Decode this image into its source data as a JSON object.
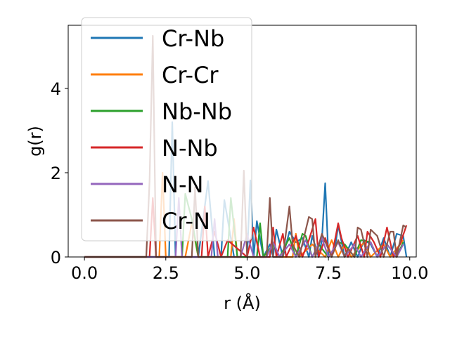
{
  "chart_data": {
    "type": "line",
    "xlabel": "r (Å)",
    "ylabel": "g(r)",
    "xlim": [
      -0.5,
      10.2
    ],
    "ylim": [
      0,
      5.5
    ],
    "xticks": [
      0.0,
      2.5,
      5.0,
      7.5,
      10.0
    ],
    "xtick_labels": [
      "0.0",
      "2.5",
      "5.0",
      "7.5",
      "10.0"
    ],
    "yticks": [
      0,
      2,
      4
    ],
    "ytick_labels": [
      "0",
      "2",
      "4"
    ],
    "grid": false,
    "legend_position": "upper-left",
    "series": [
      {
        "name": "Cr-Nb",
        "color": "#1f77b4",
        "x": [
          0,
          2.6,
          2.7,
          2.8,
          3.5,
          3.8,
          4.0,
          4.2,
          4.3,
          4.6,
          5.0,
          5.1,
          5.2,
          5.3,
          5.5,
          5.7,
          5.8,
          5.9,
          6.1,
          6.3,
          6.5,
          6.7,
          6.9,
          7.0,
          7.2,
          7.3,
          7.4,
          7.5,
          7.7,
          7.8,
          8.0,
          8.2,
          8.4,
          8.6,
          8.8,
          9.0,
          9.2,
          9.4,
          9.6,
          9.8,
          9.9
        ],
        "y": [
          0,
          0,
          3.2,
          0,
          0,
          1.8,
          0,
          0,
          1.35,
          0,
          0,
          1.82,
          0,
          0.85,
          0,
          0.3,
          0,
          0.65,
          0,
          0.6,
          0.35,
          0.45,
          0,
          0.5,
          0,
          0.4,
          1.75,
          0,
          0.2,
          0.75,
          0,
          0.35,
          0,
          0.4,
          0.3,
          0,
          0.45,
          0,
          0.55,
          0.5,
          0
        ]
      },
      {
        "name": "Cr-Cr",
        "color": "#ff7f0e",
        "x": [
          0,
          2.3,
          2.4,
          2.5,
          3.1,
          3.3,
          3.5,
          4.5,
          4.6,
          4.7,
          5.5,
          5.8,
          6.0,
          6.4,
          6.5,
          6.6,
          7.0,
          7.4,
          7.6,
          7.8,
          8.0,
          8.2,
          8.6,
          8.8,
          9.2,
          9.4,
          9.6,
          9.8
        ],
        "y": [
          0,
          0,
          2.0,
          0,
          0,
          0.8,
          0,
          0,
          0.9,
          0,
          0,
          0.3,
          0,
          0,
          0.55,
          0,
          0.3,
          0,
          0.4,
          0,
          0.3,
          0,
          0.35,
          0,
          0.3,
          0,
          0.2,
          0.4
        ]
      },
      {
        "name": "Nb-Nb",
        "color": "#2ca02c",
        "x": [
          0,
          3.0,
          3.1,
          3.3,
          3.5,
          4.4,
          4.5,
          4.7,
          5.3,
          5.4,
          5.5,
          5.8,
          6.0,
          6.3,
          6.5,
          6.7,
          6.8,
          7.0,
          7.2,
          7.5,
          7.8,
          8.0,
          8.3,
          8.5,
          8.8,
          9.0,
          9.3,
          9.6,
          9.8
        ],
        "y": [
          0,
          0,
          1.5,
          0.9,
          0,
          0,
          1.4,
          0,
          0,
          0.8,
          0,
          0.3,
          0,
          0.45,
          0,
          0.55,
          0.5,
          0,
          0.3,
          0,
          0.35,
          0.3,
          0,
          0.4,
          0.35,
          0,
          0.3,
          0,
          0.35
        ]
      },
      {
        "name": "N-Nb",
        "color": "#d62728",
        "x": [
          0,
          2.0,
          2.1,
          2.2,
          3.6,
          3.7,
          3.8,
          4.0,
          4.2,
          4.4,
          5.0,
          5.2,
          5.4,
          5.7,
          5.8,
          5.9,
          6.1,
          6.2,
          6.5,
          6.7,
          6.9,
          7.1,
          7.2,
          7.4,
          7.6,
          7.8,
          7.9,
          8.1,
          8.4,
          8.6,
          8.7,
          8.9,
          9.1,
          9.3,
          9.5,
          9.7,
          9.9
        ],
        "y": [
          0,
          0,
          1.4,
          0,
          0,
          1.2,
          0,
          0.6,
          0,
          0.4,
          0,
          0.7,
          0,
          0,
          0.7,
          0,
          0.55,
          0,
          0.5,
          0,
          0.4,
          0.9,
          0,
          0.45,
          0,
          0.8,
          0.45,
          0,
          0.5,
          0,
          0.6,
          0.35,
          0,
          0.7,
          0,
          0.3,
          0.75
        ]
      },
      {
        "name": "N-N",
        "color": "#9467bd",
        "x": [
          0,
          2.8,
          2.9,
          3.0,
          3.9,
          4.0,
          4.1,
          4.8,
          5.0,
          5.2,
          5.6,
          5.8,
          6.0,
          6.3,
          6.5,
          6.8,
          7.0,
          7.3,
          7.5,
          7.8,
          8.0,
          8.3,
          8.5,
          8.8,
          9.0,
          9.3,
          9.6,
          9.8
        ],
        "y": [
          0,
          0,
          1.4,
          0,
          0,
          0.9,
          0,
          0,
          0.55,
          0,
          0,
          0.35,
          0,
          0.3,
          0,
          0.4,
          0,
          0.45,
          0,
          0.35,
          0,
          0.3,
          0,
          0.35,
          0,
          0.3,
          0,
          0.3
        ]
      },
      {
        "name": "Cr-N",
        "color": "#8c564b",
        "x": [
          0,
          1.9,
          2.0,
          2.1,
          2.2,
          3.3,
          3.4,
          3.5,
          4.8,
          4.9,
          5.0,
          5.6,
          5.7,
          5.8,
          6.1,
          6.3,
          6.4,
          6.6,
          6.9,
          7.0,
          7.1,
          7.3,
          7.6,
          7.8,
          8.0,
          8.1,
          8.3,
          8.4,
          8.5,
          8.7,
          8.8,
          9.0,
          9.2,
          9.4,
          9.5,
          9.6,
          9.8,
          9.9
        ],
        "y": [
          0,
          0,
          1.8,
          5.25,
          0,
          0,
          1.65,
          0,
          0,
          2.05,
          0,
          0,
          1.4,
          0,
          0,
          1.2,
          0.3,
          0,
          0.95,
          0.9,
          0,
          0.55,
          0,
          0.4,
          0,
          0.2,
          0,
          0.7,
          0.65,
          0,
          0.65,
          0.5,
          0,
          0.6,
          0.6,
          0,
          0.75,
          0.7
        ]
      }
    ]
  }
}
